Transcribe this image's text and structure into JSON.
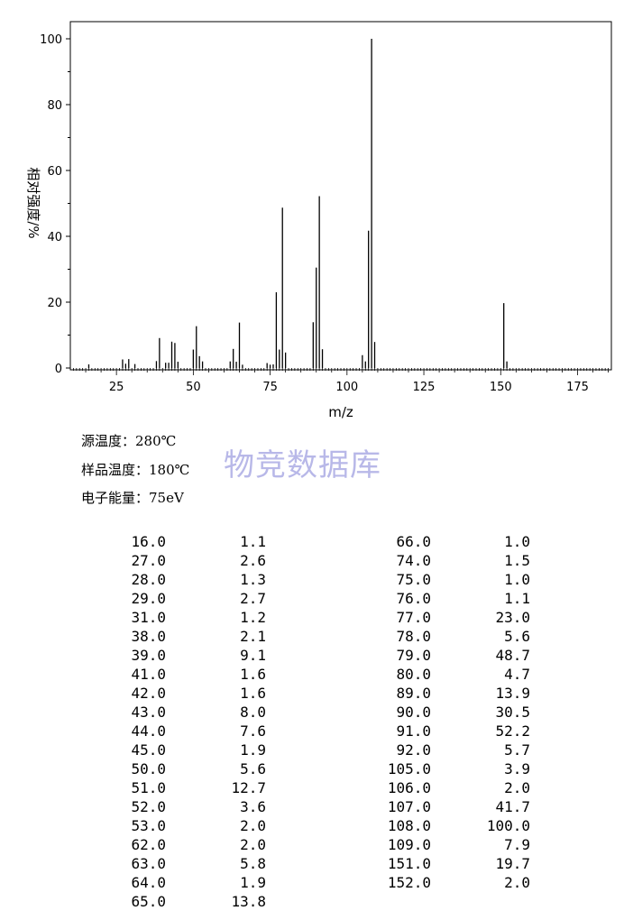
{
  "chart_data": {
    "type": "bar",
    "ylabel": "相对强度/%",
    "xlabel": "m/z",
    "xlim": [
      10,
      186
    ],
    "ylim": [
      0,
      100
    ],
    "x_ticks": [
      "25",
      "50",
      "75",
      "100",
      "125",
      "150",
      "175"
    ],
    "y_ticks": [
      "0",
      "20",
      "40",
      "60",
      "80",
      "100"
    ],
    "x": [
      16.0,
      27.0,
      28.0,
      29.0,
      31.0,
      38.0,
      39.0,
      41.0,
      42.0,
      43.0,
      44.0,
      45.0,
      50.0,
      51.0,
      52.0,
      53.0,
      62.0,
      63.0,
      64.0,
      65.0,
      66.0,
      74.0,
      75.0,
      76.0,
      77.0,
      78.0,
      79.0,
      80.0,
      89.0,
      90.0,
      91.0,
      92.0,
      105.0,
      106.0,
      107.0,
      108.0,
      109.0,
      151.0,
      152.0
    ],
    "values": [
      1.1,
      2.6,
      1.3,
      2.7,
      1.2,
      2.1,
      9.1,
      1.6,
      1.6,
      8.0,
      7.6,
      1.9,
      5.6,
      12.7,
      3.6,
      2.0,
      2.0,
      5.8,
      1.9,
      13.8,
      1.0,
      1.5,
      1.0,
      1.1,
      23.0,
      5.6,
      48.7,
      4.7,
      13.9,
      30.5,
      52.2,
      5.7,
      3.9,
      2.0,
      41.7,
      100.0,
      7.9,
      19.7,
      2.0
    ]
  },
  "info": {
    "source_temp": "源温度：280℃",
    "sample_temp": "样品温度：180℃",
    "electron_energy": "电子能量：75eV"
  },
  "watermark": "物竞数据库",
  "peak_table": {
    "left": [
      [
        "16.0",
        "1.1"
      ],
      [
        "27.0",
        "2.6"
      ],
      [
        "28.0",
        "1.3"
      ],
      [
        "29.0",
        "2.7"
      ],
      [
        "31.0",
        "1.2"
      ],
      [
        "38.0",
        "2.1"
      ],
      [
        "39.0",
        "9.1"
      ],
      [
        "41.0",
        "1.6"
      ],
      [
        "42.0",
        "1.6"
      ],
      [
        "43.0",
        "8.0"
      ],
      [
        "44.0",
        "7.6"
      ],
      [
        "45.0",
        "1.9"
      ],
      [
        "50.0",
        "5.6"
      ],
      [
        "51.0",
        "12.7"
      ],
      [
        "52.0",
        "3.6"
      ],
      [
        "53.0",
        "2.0"
      ],
      [
        "62.0",
        "2.0"
      ],
      [
        "63.0",
        "5.8"
      ],
      [
        "64.0",
        "1.9"
      ],
      [
        "65.0",
        "13.8"
      ]
    ],
    "right": [
      [
        "66.0",
        "1.0"
      ],
      [
        "74.0",
        "1.5"
      ],
      [
        "75.0",
        "1.0"
      ],
      [
        "76.0",
        "1.1"
      ],
      [
        "77.0",
        "23.0"
      ],
      [
        "78.0",
        "5.6"
      ],
      [
        "79.0",
        "48.7"
      ],
      [
        "80.0",
        "4.7"
      ],
      [
        "89.0",
        "13.9"
      ],
      [
        "90.0",
        "30.5"
      ],
      [
        "91.0",
        "52.2"
      ],
      [
        "92.0",
        "5.7"
      ],
      [
        "105.0",
        "3.9"
      ],
      [
        "106.0",
        "2.0"
      ],
      [
        "107.0",
        "41.7"
      ],
      [
        "108.0",
        "100.0"
      ],
      [
        "109.0",
        "7.9"
      ],
      [
        "151.0",
        "19.7"
      ],
      [
        "152.0",
        "2.0"
      ]
    ]
  }
}
